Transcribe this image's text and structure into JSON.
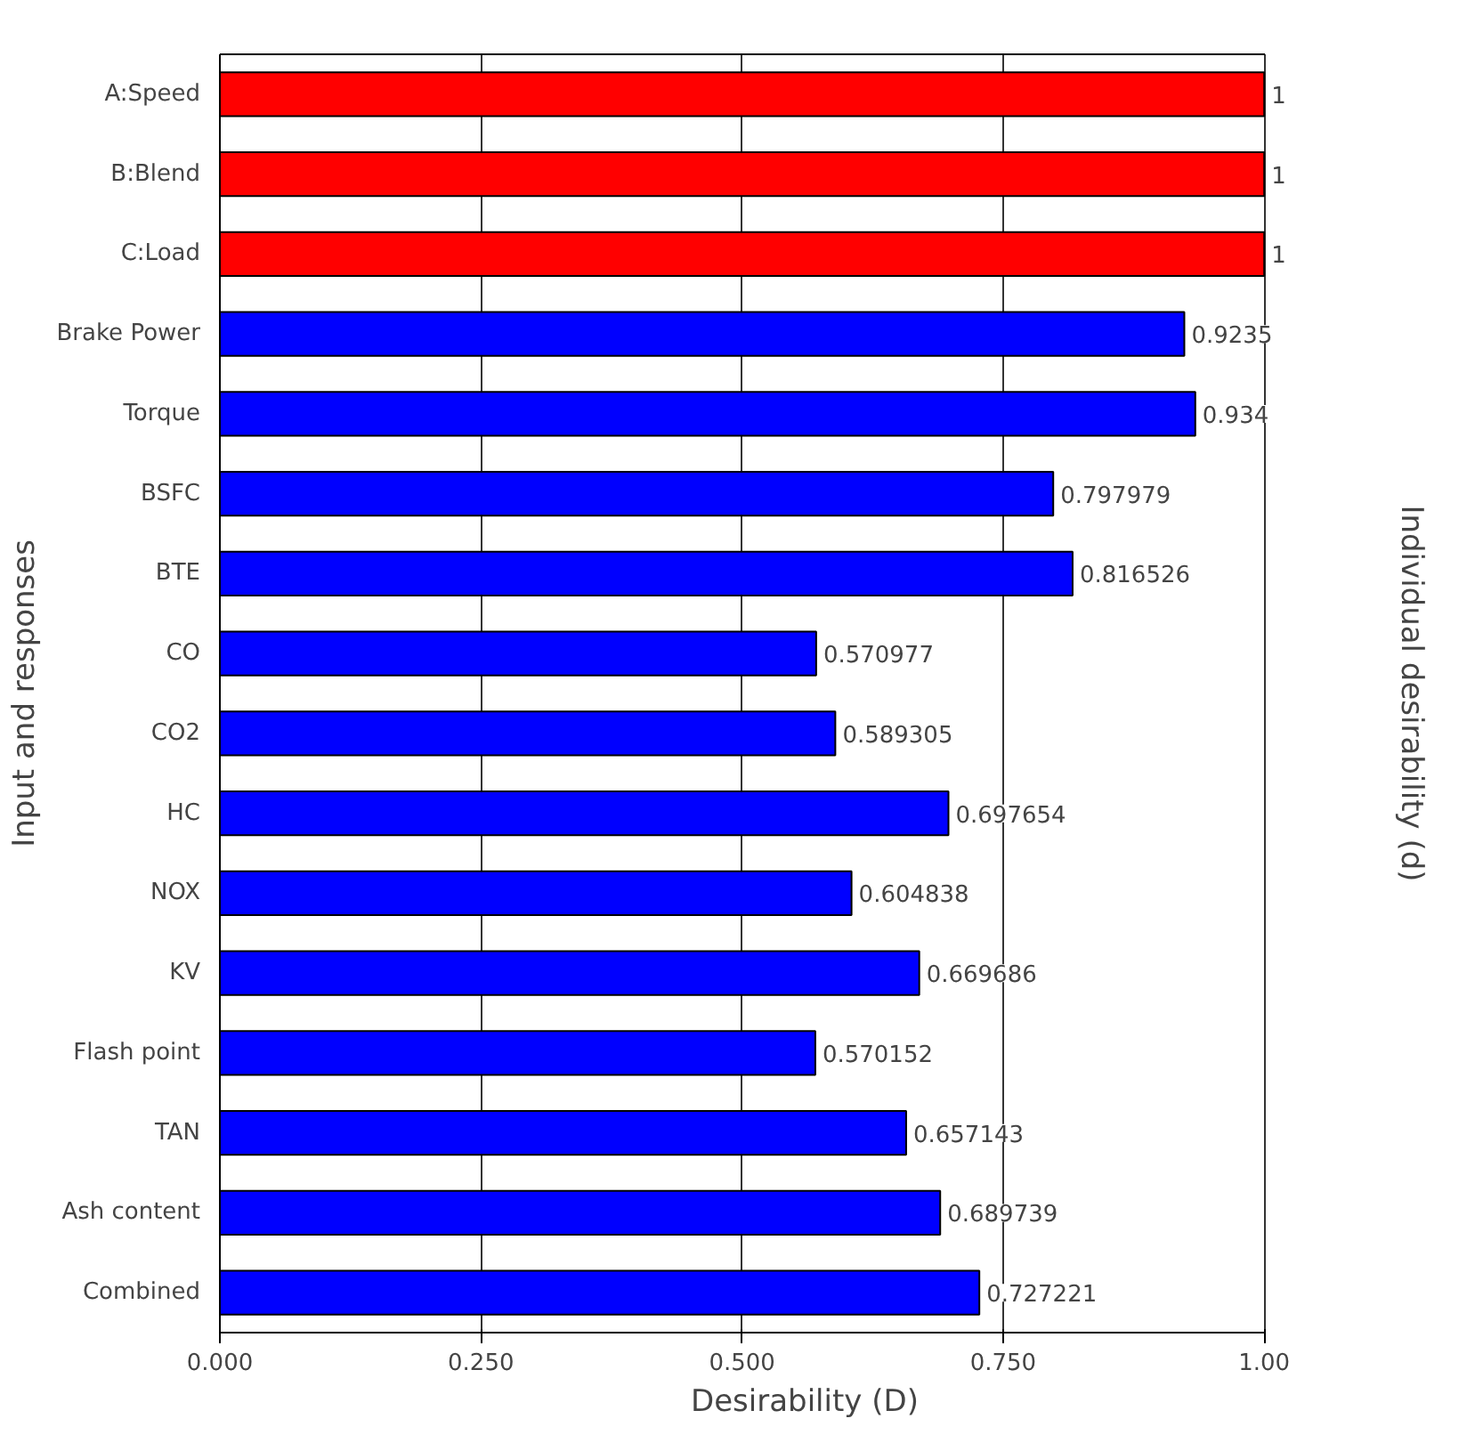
{
  "chart_data": {
    "type": "bar",
    "orientation": "horizontal",
    "xlabel": "Desirability (D)",
    "ylabel": "Input and responses",
    "y2label": "Individual desirability (d)",
    "categories": [
      "A:Speed",
      "B:Blend",
      "C:Load",
      "Brake Power",
      "Torque",
      "BSFC",
      "BTE",
      "CO",
      "CO2",
      "HC",
      "NOX",
      "KV",
      "Flash point",
      "TAN",
      "Ash content",
      "Combined"
    ],
    "values": [
      1,
      1,
      1,
      0.9235,
      0.934,
      0.797979,
      0.816526,
      0.570977,
      0.589305,
      0.697654,
      0.604838,
      0.669686,
      0.570152,
      0.657143,
      0.689739,
      0.727221
    ],
    "colors": [
      "#ff0000",
      "#ff0000",
      "#ff0000",
      "#0000ff",
      "#0000ff",
      "#0000ff",
      "#0000ff",
      "#0000ff",
      "#0000ff",
      "#0000ff",
      "#0000ff",
      "#0000ff",
      "#0000ff",
      "#0000ff",
      "#0000ff",
      "#0000ff"
    ],
    "xlim": [
      0,
      1
    ],
    "xticks": [
      {
        "value": 0,
        "label": "0.000"
      },
      {
        "value": 0.25,
        "label": "0.250"
      },
      {
        "value": 0.5,
        "label": "0.500"
      },
      {
        "value": 0.75,
        "label": "0.750"
      },
      {
        "value": 1,
        "label": "1.00"
      }
    ],
    "grid": "x",
    "data_labels": true
  }
}
